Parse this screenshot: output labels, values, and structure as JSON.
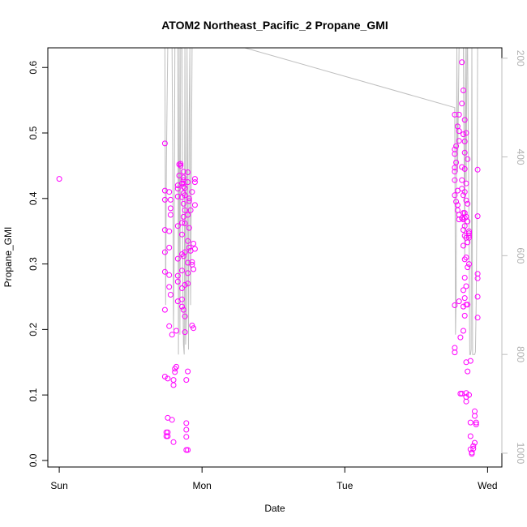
{
  "chart_data": {
    "type": "scatter",
    "title": "ATOM2 Northeast_Pacific_2 Propane_GMI",
    "xlabel": "Date",
    "ylabel": "Propane_GMI",
    "x_ticks": [
      "Sun",
      "Mon",
      "Tue",
      "Wed"
    ],
    "y_ticks": [
      "0.0",
      "0.1",
      "0.2",
      "0.3",
      "0.4",
      "0.5",
      "0.6"
    ],
    "y2_ticks": [
      "200",
      "400",
      "600",
      "800",
      "1000"
    ],
    "xlim": [
      -0.08,
      3.1
    ],
    "ylim": [
      -0.01,
      0.63
    ],
    "y2lim": [
      1028,
      179
    ],
    "y2_reversed": true,
    "colors": {
      "points": "#ff00ff",
      "pressure_line": "#bebebe",
      "axis": "#000000",
      "right_axis": "#bebebe"
    },
    "series": [
      {
        "marker": "open-circle",
        "points": [
          [
            0.0,
            0.43
          ],
          [
            0.74,
            0.484
          ],
          [
            0.74,
            0.412
          ],
          [
            0.74,
            0.398
          ],
          [
            0.74,
            0.352
          ],
          [
            0.74,
            0.318
          ],
          [
            0.74,
            0.288
          ],
          [
            0.74,
            0.23
          ],
          [
            0.74,
            0.128
          ],
          [
            0.75,
            0.043
          ],
          [
            0.75,
            0.037
          ],
          [
            0.76,
            0.125
          ],
          [
            0.76,
            0.065
          ],
          [
            0.76,
            0.043
          ],
          [
            0.76,
            0.037
          ],
          [
            0.77,
            0.41
          ],
          [
            0.77,
            0.35
          ],
          [
            0.77,
            0.325
          ],
          [
            0.77,
            0.283
          ],
          [
            0.77,
            0.265
          ],
          [
            0.77,
            0.205
          ],
          [
            0.78,
            0.398
          ],
          [
            0.78,
            0.385
          ],
          [
            0.78,
            0.375
          ],
          [
            0.78,
            0.253
          ],
          [
            0.79,
            0.192
          ],
          [
            0.79,
            0.062
          ],
          [
            0.8,
            0.028
          ],
          [
            0.8,
            0.123
          ],
          [
            0.8,
            0.115
          ],
          [
            0.81,
            0.14
          ],
          [
            0.81,
            0.135
          ],
          [
            0.82,
            0.143
          ],
          [
            0.82,
            0.198
          ],
          [
            0.83,
            0.42
          ],
          [
            0.83,
            0.415
          ],
          [
            0.83,
            0.403
          ],
          [
            0.83,
            0.358
          ],
          [
            0.83,
            0.308
          ],
          [
            0.83,
            0.282
          ],
          [
            0.83,
            0.273
          ],
          [
            0.83,
            0.243
          ],
          [
            0.84,
            0.452
          ],
          [
            0.84,
            0.435
          ],
          [
            0.85,
            0.453
          ],
          [
            0.85,
            0.45
          ],
          [
            0.86,
            0.423
          ],
          [
            0.86,
            0.402
          ],
          [
            0.86,
            0.363
          ],
          [
            0.86,
            0.345
          ],
          [
            0.86,
            0.315
          ],
          [
            0.86,
            0.29
          ],
          [
            0.86,
            0.263
          ],
          [
            0.86,
            0.246
          ],
          [
            0.86,
            0.235
          ],
          [
            0.87,
            0.441
          ],
          [
            0.87,
            0.432
          ],
          [
            0.87,
            0.428
          ],
          [
            0.87,
            0.423
          ],
          [
            0.87,
            0.418
          ],
          [
            0.87,
            0.408
          ],
          [
            0.87,
            0.392
          ],
          [
            0.87,
            0.372
          ],
          [
            0.87,
            0.312
          ],
          [
            0.87,
            0.23
          ],
          [
            0.88,
            0.416
          ],
          [
            0.88,
            0.405
          ],
          [
            0.88,
            0.382
          ],
          [
            0.88,
            0.362
          ],
          [
            0.88,
            0.318
          ],
          [
            0.88,
            0.268
          ],
          [
            0.88,
            0.22
          ],
          [
            0.88,
            0.196
          ],
          [
            0.89,
            0.123
          ],
          [
            0.89,
            0.057
          ],
          [
            0.89,
            0.047
          ],
          [
            0.89,
            0.036
          ],
          [
            0.89,
            0.016
          ],
          [
            0.9,
            0.016
          ],
          [
            0.9,
            0.136
          ],
          [
            0.9,
            0.44
          ],
          [
            0.9,
            0.425
          ],
          [
            0.9,
            0.375
          ],
          [
            0.9,
            0.335
          ],
          [
            0.9,
            0.302
          ],
          [
            0.9,
            0.286
          ],
          [
            0.9,
            0.27
          ],
          [
            0.91,
            0.4
          ],
          [
            0.91,
            0.396
          ],
          [
            0.91,
            0.355
          ],
          [
            0.91,
            0.325
          ],
          [
            0.92,
            0.382
          ],
          [
            0.92,
            0.32
          ],
          [
            0.93,
            0.41
          ],
          [
            0.93,
            0.303
          ],
          [
            0.93,
            0.299
          ],
          [
            0.93,
            0.206
          ],
          [
            0.94,
            0.331
          ],
          [
            0.94,
            0.292
          ],
          [
            0.94,
            0.202
          ],
          [
            0.95,
            0.43
          ],
          [
            0.95,
            0.425
          ],
          [
            0.95,
            0.39
          ],
          [
            0.95,
            0.323
          ],
          [
            2.77,
            0.528
          ],
          [
            2.77,
            0.475
          ],
          [
            2.77,
            0.468
          ],
          [
            2.77,
            0.447
          ],
          [
            2.77,
            0.441
          ],
          [
            2.77,
            0.428
          ],
          [
            2.77,
            0.405
          ],
          [
            2.77,
            0.237
          ],
          [
            2.77,
            0.172
          ],
          [
            2.77,
            0.165
          ],
          [
            2.78,
            0.48
          ],
          [
            2.78,
            0.455
          ],
          [
            2.78,
            0.395
          ],
          [
            2.79,
            0.51
          ],
          [
            2.79,
            0.412
          ],
          [
            2.79,
            0.39
          ],
          [
            2.79,
            0.382
          ],
          [
            2.8,
            0.528
          ],
          [
            2.8,
            0.503
          ],
          [
            2.8,
            0.488
          ],
          [
            2.8,
            0.375
          ],
          [
            2.8,
            0.368
          ],
          [
            2.8,
            0.243
          ],
          [
            2.81,
            0.102
          ],
          [
            2.81,
            0.188
          ],
          [
            2.82,
            0.608
          ],
          [
            2.82,
            0.545
          ],
          [
            2.82,
            0.448
          ],
          [
            2.82,
            0.428
          ],
          [
            2.82,
            0.415
          ],
          [
            2.82,
            0.37
          ],
          [
            2.82,
            0.102
          ],
          [
            2.83,
            0.565
          ],
          [
            2.83,
            0.498
          ],
          [
            2.83,
            0.405
          ],
          [
            2.83,
            0.378
          ],
          [
            2.83,
            0.368
          ],
          [
            2.83,
            0.352
          ],
          [
            2.83,
            0.328
          ],
          [
            2.83,
            0.26
          ],
          [
            2.83,
            0.235
          ],
          [
            2.83,
            0.198
          ],
          [
            2.84,
            0.52
          ],
          [
            2.84,
            0.487
          ],
          [
            2.84,
            0.47
          ],
          [
            2.84,
            0.445
          ],
          [
            2.84,
            0.41
          ],
          [
            2.84,
            0.378
          ],
          [
            2.84,
            0.37
          ],
          [
            2.84,
            0.358
          ],
          [
            2.84,
            0.343
          ],
          [
            2.84,
            0.307
          ],
          [
            2.84,
            0.279
          ],
          [
            2.84,
            0.248
          ],
          [
            2.84,
            0.221
          ],
          [
            2.85,
            0.5
          ],
          [
            2.85,
            0.423
          ],
          [
            2.85,
            0.397
          ],
          [
            2.85,
            0.372
          ],
          [
            2.85,
            0.34
          ],
          [
            2.85,
            0.31
          ],
          [
            2.85,
            0.266
          ],
          [
            2.85,
            0.238
          ],
          [
            2.85,
            0.15
          ],
          [
            2.85,
            0.103
          ],
          [
            2.85,
            0.097
          ],
          [
            2.85,
            0.09
          ],
          [
            2.86,
            0.46
          ],
          [
            2.86,
            0.392
          ],
          [
            2.86,
            0.365
          ],
          [
            2.86,
            0.333
          ],
          [
            2.86,
            0.295
          ],
          [
            2.86,
            0.238
          ],
          [
            2.86,
            0.136
          ],
          [
            2.87,
            0.35
          ],
          [
            2.87,
            0.347
          ],
          [
            2.87,
            0.343
          ],
          [
            2.87,
            0.34
          ],
          [
            2.87,
            0.3
          ],
          [
            2.87,
            0.1
          ],
          [
            2.88,
            0.152
          ],
          [
            2.88,
            0.058
          ],
          [
            2.88,
            0.037
          ],
          [
            2.88,
            0.017
          ],
          [
            2.89,
            0.012
          ],
          [
            2.89,
            0.01
          ],
          [
            2.9,
            0.018
          ],
          [
            2.9,
            0.022
          ],
          [
            2.91,
            0.027
          ],
          [
            2.91,
            0.075
          ],
          [
            2.91,
            0.068
          ],
          [
            2.92,
            0.055
          ],
          [
            2.92,
            0.058
          ],
          [
            2.93,
            0.444
          ],
          [
            2.93,
            0.373
          ],
          [
            2.93,
            0.285
          ],
          [
            2.93,
            0.278
          ],
          [
            2.93,
            0.25
          ],
          [
            2.93,
            0.218
          ]
        ]
      },
      {
        "name": "",
        "axis": "right",
        "style": "line",
        "points": [
          [
            0.74,
            179
          ],
          [
            0.745,
            700
          ],
          [
            0.75,
            420
          ],
          [
            0.755,
            300
          ],
          [
            0.76,
            179
          ],
          [
            0.77,
            179
          ],
          [
            0.78,
            179
          ],
          [
            0.79,
            179
          ],
          [
            0.795,
            430
          ],
          [
            0.8,
            750
          ],
          [
            0.805,
            610
          ],
          [
            0.81,
            179
          ],
          [
            0.82,
            179
          ],
          [
            0.83,
            179
          ],
          [
            0.835,
            800
          ],
          [
            0.84,
            179
          ],
          [
            0.845,
            760
          ],
          [
            0.85,
            179
          ],
          [
            0.86,
            180
          ],
          [
            0.865,
            650
          ],
          [
            0.87,
            780
          ],
          [
            0.875,
            800
          ],
          [
            0.88,
            179
          ],
          [
            0.885,
            780
          ],
          [
            0.89,
            730
          ],
          [
            0.895,
            180
          ],
          [
            0.9,
            500
          ],
          [
            0.905,
            790
          ],
          [
            0.91,
            310
          ],
          [
            0.915,
            179
          ],
          [
            0.92,
            700
          ],
          [
            0.93,
            179
          ],
          [
            0.95,
            179
          ],
          [
            1.3,
            179
          ],
          [
            2.77,
            300
          ],
          [
            2.775,
            760
          ],
          [
            2.78,
            680
          ],
          [
            2.785,
            179
          ],
          [
            2.79,
            430
          ],
          [
            2.8,
            179
          ],
          [
            2.81,
            179
          ],
          [
            2.82,
            179
          ],
          [
            2.83,
            179
          ],
          [
            2.84,
            600
          ],
          [
            2.845,
            179
          ],
          [
            2.85,
            450
          ],
          [
            2.855,
            179
          ],
          [
            2.86,
            179
          ],
          [
            2.87,
            540
          ],
          [
            2.875,
            800
          ],
          [
            2.88,
            800
          ],
          [
            2.885,
            790
          ],
          [
            2.89,
            179
          ],
          [
            2.895,
            800
          ],
          [
            2.9,
            800
          ],
          [
            2.91,
            800
          ],
          [
            2.915,
            795
          ],
          [
            2.92,
            700
          ],
          [
            2.925,
            520
          ],
          [
            2.93,
            179
          ]
        ]
      }
    ]
  }
}
